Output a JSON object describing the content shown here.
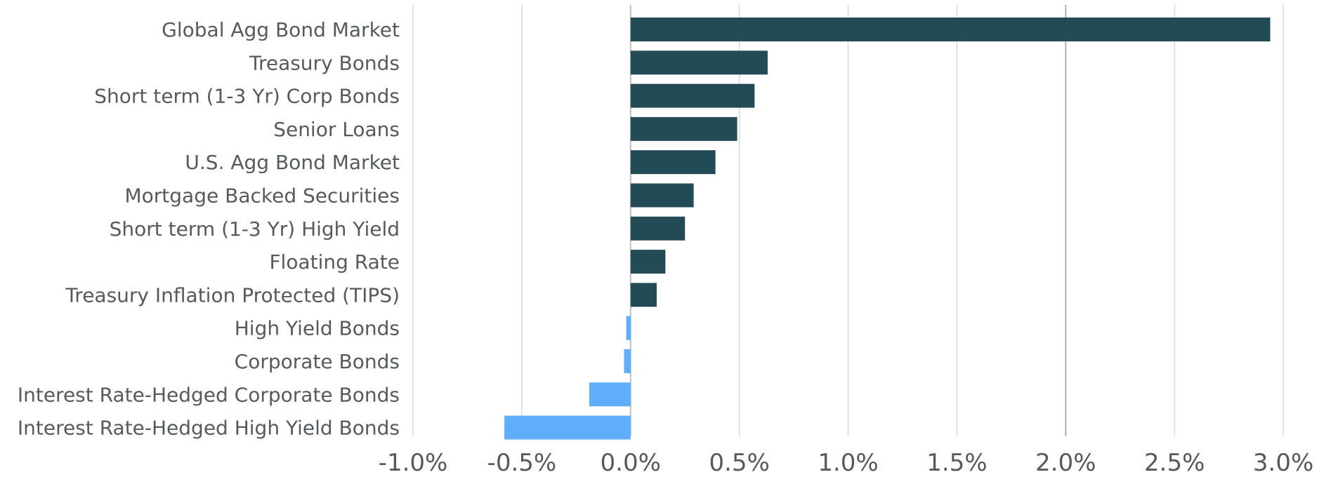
{
  "chart_data": {
    "type": "bar",
    "orientation": "horizontal",
    "title": "",
    "xlabel": "",
    "ylabel": "",
    "categories": [
      "Global Agg Bond Market",
      "Treasury Bonds",
      "Short term (1-3 Yr) Corp Bonds",
      "Senior Loans",
      "U.S. Agg Bond Market",
      "Mortgage Backed Securities",
      "Short term (1-3 Yr) High Yield",
      "Floating Rate",
      "Treasury Inflation Protected (TIPS)",
      "High Yield Bonds",
      "Corporate Bonds",
      "Interest Rate-Hedged Corporate Bonds",
      "Interest Rate-Hedged High Yield Bonds"
    ],
    "values": [
      2.94,
      0.63,
      0.57,
      0.49,
      0.39,
      0.29,
      0.25,
      0.16,
      0.12,
      -0.02,
      -0.03,
      -0.19,
      -0.58
    ],
    "unit": "%",
    "xlim": [
      -1.0,
      3.0
    ],
    "xticks": [
      -1.0,
      -0.5,
      0.0,
      0.5,
      1.0,
      1.5,
      2.0,
      2.5,
      3.0
    ],
    "xtick_labels": [
      "-1.0%",
      "-0.5%",
      "0.0%",
      "0.5%",
      "1.0%",
      "1.5%",
      "2.0%",
      "2.5%",
      "3.0%"
    ],
    "grid": "vertical",
    "legend": "none",
    "colors": {
      "positive": "#234b56",
      "negative": "#5eaefc",
      "gridline": "#d9d9d9",
      "text": "#555a5e"
    }
  }
}
